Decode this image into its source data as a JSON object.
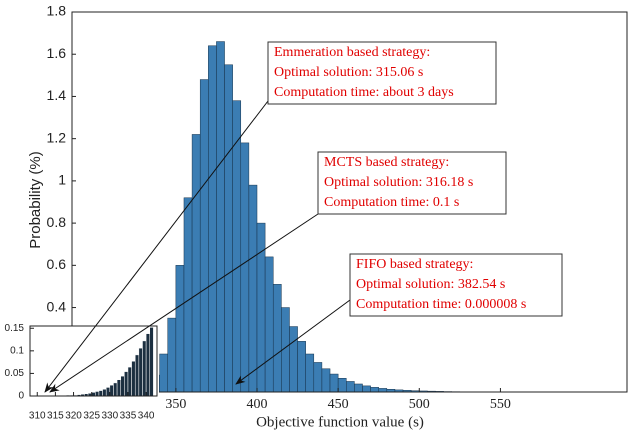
{
  "chart_data": [
    {
      "type": "histogram",
      "xlabel": "Objective function value (s)",
      "ylabel": "Probability (%)",
      "bins": [
        310,
        315,
        320,
        325,
        330,
        335,
        340,
        345,
        350,
        355,
        360,
        365,
        370,
        375,
        380,
        385,
        390,
        395,
        400,
        405,
        410,
        415,
        420,
        425,
        430,
        435,
        440,
        445,
        450,
        455,
        460,
        465,
        470,
        475,
        480,
        485,
        490,
        495,
        500,
        505,
        510,
        515,
        520,
        525,
        530,
        535,
        540,
        545,
        550,
        555,
        560,
        565,
        570,
        575,
        580,
        585,
        590
      ],
      "values": [
        0.001,
        0.002,
        0.005,
        0.012,
        0.03,
        0.08,
        0.18,
        0.35,
        0.6,
        0.92,
        1.22,
        1.48,
        1.64,
        1.66,
        1.55,
        1.38,
        1.18,
        0.98,
        0.8,
        0.64,
        0.51,
        0.4,
        0.31,
        0.24,
        0.18,
        0.14,
        0.11,
        0.085,
        0.065,
        0.05,
        0.038,
        0.029,
        0.022,
        0.017,
        0.013,
        0.01,
        0.008,
        0.006,
        0.005,
        0.004,
        0.003,
        0.002,
        0.0015,
        0.001,
        0.001,
        0.0008,
        0.0006,
        0.0005,
        0.0004,
        0.0003,
        0.0002,
        0.0002,
        0.0001,
        0.0001,
        0.0001,
        0.0001
      ],
      "color": "#3b7db3",
      "edgecolor": "#16324a",
      "xlim": [
        286,
        628
      ],
      "ylim": [
        0,
        1.8
      ],
      "xticks": [
        350,
        400,
        450,
        500,
        550
      ],
      "yticks": [
        0.4,
        0.6,
        0.8,
        1,
        1.2,
        1.4,
        1.6,
        1.8
      ],
      "annotation_color": "#e00000",
      "annotations": [
        {
          "lines": [
            "Emmeration based strategy:",
            "Optimal solution: 315.06 s",
            "Computation time: about 3 days"
          ]
        },
        {
          "lines": [
            "MCTS based strategy:",
            "Optimal solution: 316.18 s",
            "Computation time: 0.1 s"
          ]
        },
        {
          "lines": [
            "FIFO based strategy:",
            "Optimal solution: 382.54 s",
            "Computation time: 0.000008 s"
          ]
        }
      ]
    },
    {
      "type": "histogram",
      "bins": [
        310,
        311,
        312,
        313,
        314,
        315,
        316,
        317,
        318,
        319,
        320,
        321,
        322,
        323,
        324,
        325,
        326,
        327,
        328,
        329,
        330,
        331,
        332,
        333,
        334,
        335,
        336,
        337,
        338,
        339,
        340,
        341,
        342
      ],
      "values": [
        0,
        0,
        0,
        0,
        0.001,
        0.001,
        0.001,
        0.001,
        0.002,
        0.002,
        0.002,
        0.003,
        0.004,
        0.005,
        0.006,
        0.008,
        0.01,
        0.012,
        0.015,
        0.019,
        0.024,
        0.029,
        0.036,
        0.044,
        0.054,
        0.064,
        0.077,
        0.091,
        0.106,
        0.122,
        0.138,
        0.152
      ],
      "color": "#1c2f40",
      "edgecolor": "#ffffff",
      "xlim": [
        308,
        343
      ],
      "ylim": [
        0,
        0.155
      ],
      "xticks": [
        310,
        315,
        320,
        325,
        330,
        335,
        340
      ],
      "yticks": [
        0,
        0.05,
        0.1,
        0.15
      ]
    }
  ]
}
